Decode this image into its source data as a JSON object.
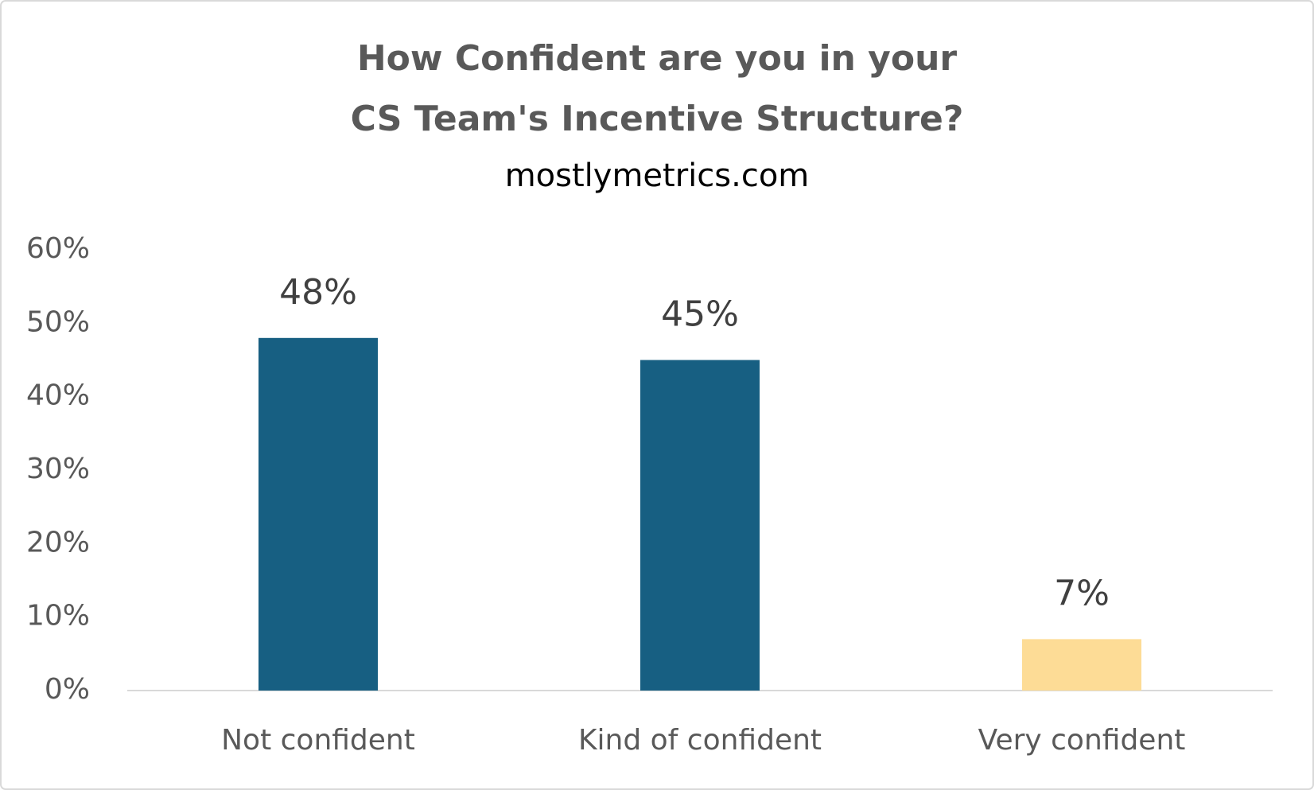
{
  "chart_data": {
    "type": "bar",
    "title": [
      "How Confident are you in your",
      "CS Team's Incentive Structure?"
    ],
    "subtitle": "mostlymetrics.com",
    "categories": [
      "Not confident",
      "Kind of confident",
      "Very confident"
    ],
    "values": [
      48,
      45,
      7
    ],
    "value_labels": [
      "48%",
      "45%",
      "7%"
    ],
    "colors": [
      "#175f82",
      "#175f82",
      "#fddc96"
    ],
    "ylim": [
      0,
      60
    ],
    "yticks": [
      {
        "value": 0,
        "label": "0%"
      },
      {
        "value": 10,
        "label": "10%"
      },
      {
        "value": 20,
        "label": "20%"
      },
      {
        "value": 30,
        "label": "30%"
      },
      {
        "value": 40,
        "label": "40%"
      },
      {
        "value": 50,
        "label": "50%"
      },
      {
        "value": 60,
        "label": "60%"
      }
    ],
    "grid": false
  }
}
